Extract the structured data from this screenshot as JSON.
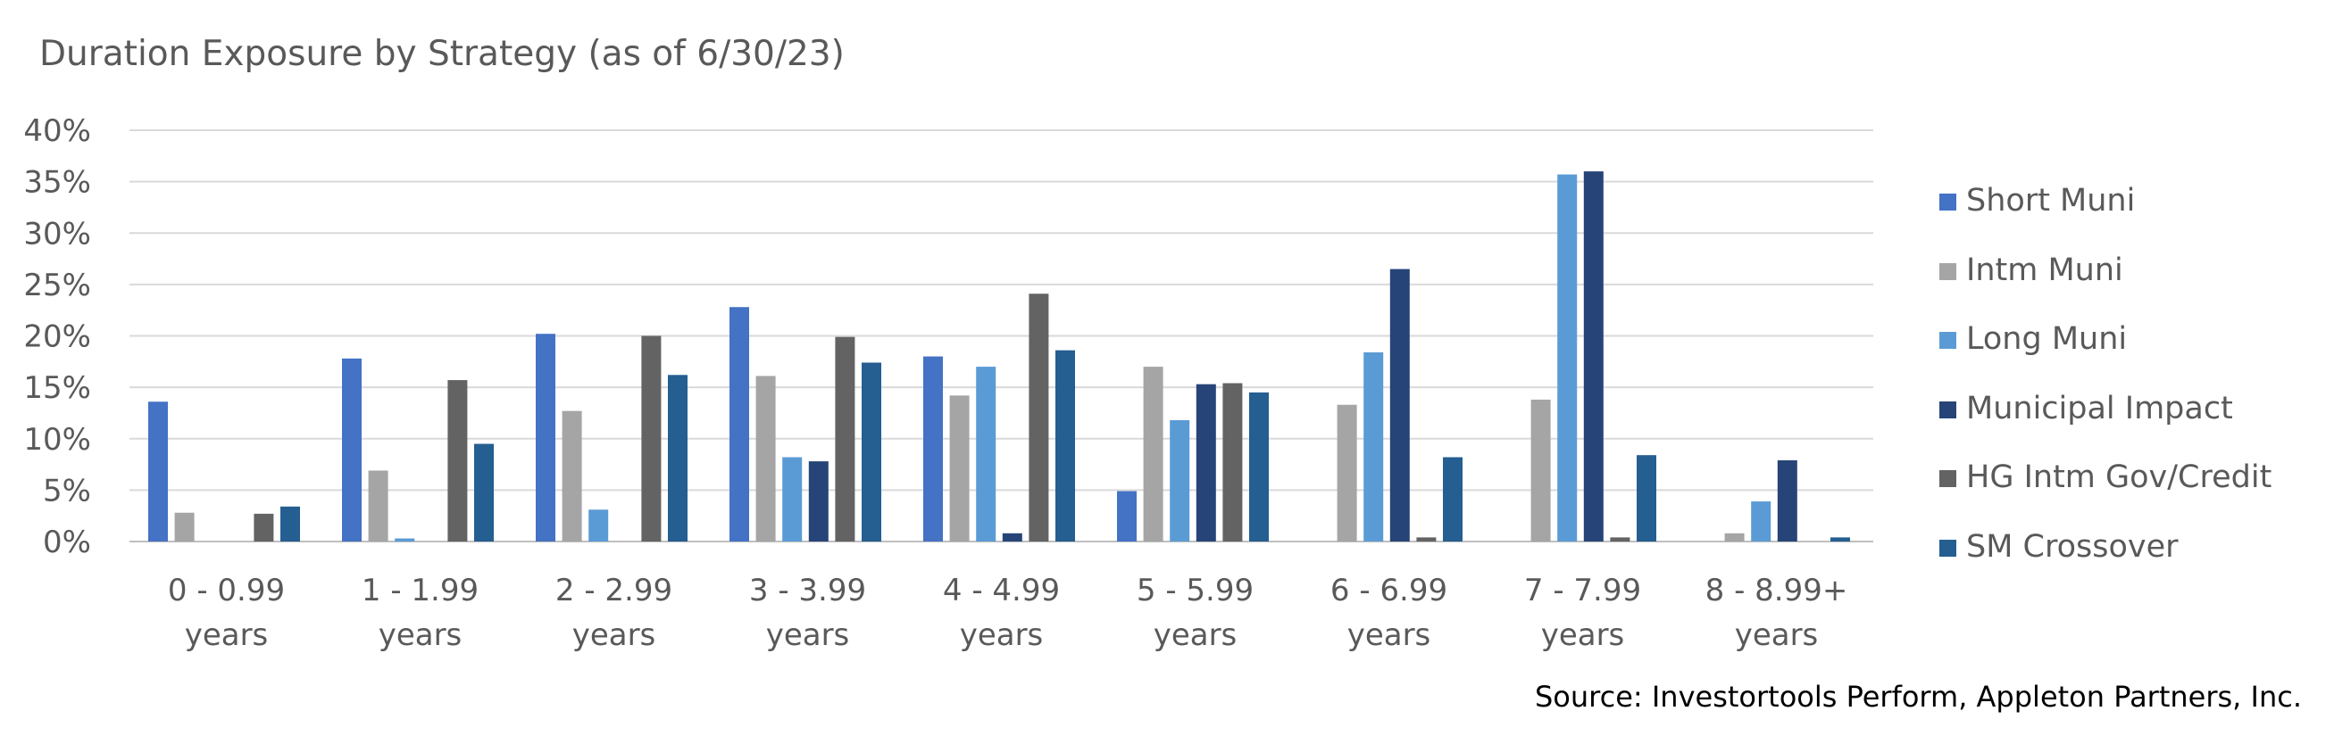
{
  "chart_data": {
    "type": "bar",
    "title": "Duration Exposure by Strategy (as of 6/30/23)",
    "source": "Source:  Investortools Perform, Appleton Partners, Inc.",
    "categories": [
      [
        "0 - 0.99",
        "years"
      ],
      [
        "1 - 1.99",
        "years"
      ],
      [
        "2 - 2.99",
        "years"
      ],
      [
        "3 - 3.99",
        "years"
      ],
      [
        "4 - 4.99",
        "years"
      ],
      [
        "5 - 5.99",
        "years"
      ],
      [
        "6 - 6.99",
        "years"
      ],
      [
        "7 - 7.99",
        "years"
      ],
      [
        "8 - 8.99+",
        "years"
      ]
    ],
    "series": [
      {
        "name": "Short Muni",
        "color": "#4472C4",
        "values": [
          13.6,
          17.8,
          20.2,
          22.8,
          18.0,
          4.9,
          0,
          0,
          0
        ]
      },
      {
        "name": "Intm Muni",
        "color": "#A5A5A5",
        "values": [
          2.8,
          6.9,
          12.7,
          16.1,
          14.2,
          17.0,
          13.3,
          13.8,
          0.8
        ]
      },
      {
        "name": "Long Muni",
        "color": "#5B9BD5",
        "values": [
          0,
          0.3,
          3.1,
          8.2,
          17.0,
          11.8,
          18.4,
          35.7,
          3.9
        ]
      },
      {
        "name": "Municipal Impact",
        "color": "#264478",
        "values": [
          0,
          0,
          0,
          7.8,
          0.8,
          15.3,
          26.5,
          36.0,
          7.9
        ]
      },
      {
        "name": "HG Intm Gov/Credit",
        "color": "#636363",
        "values": [
          2.7,
          15.7,
          20.0,
          19.9,
          24.1,
          15.4,
          0.4,
          0.4,
          0
        ]
      },
      {
        "name": "SM Crossover",
        "color": "#255E91",
        "values": [
          3.4,
          9.5,
          16.2,
          17.4,
          18.6,
          14.5,
          8.2,
          8.4,
          0.4
        ]
      }
    ],
    "ylim": [
      0,
      40
    ],
    "yticks": [
      "0%",
      "5%",
      "10%",
      "15%",
      "20%",
      "25%",
      "30%",
      "35%",
      "40%"
    ],
    "grid": true,
    "legend_position": "right"
  }
}
